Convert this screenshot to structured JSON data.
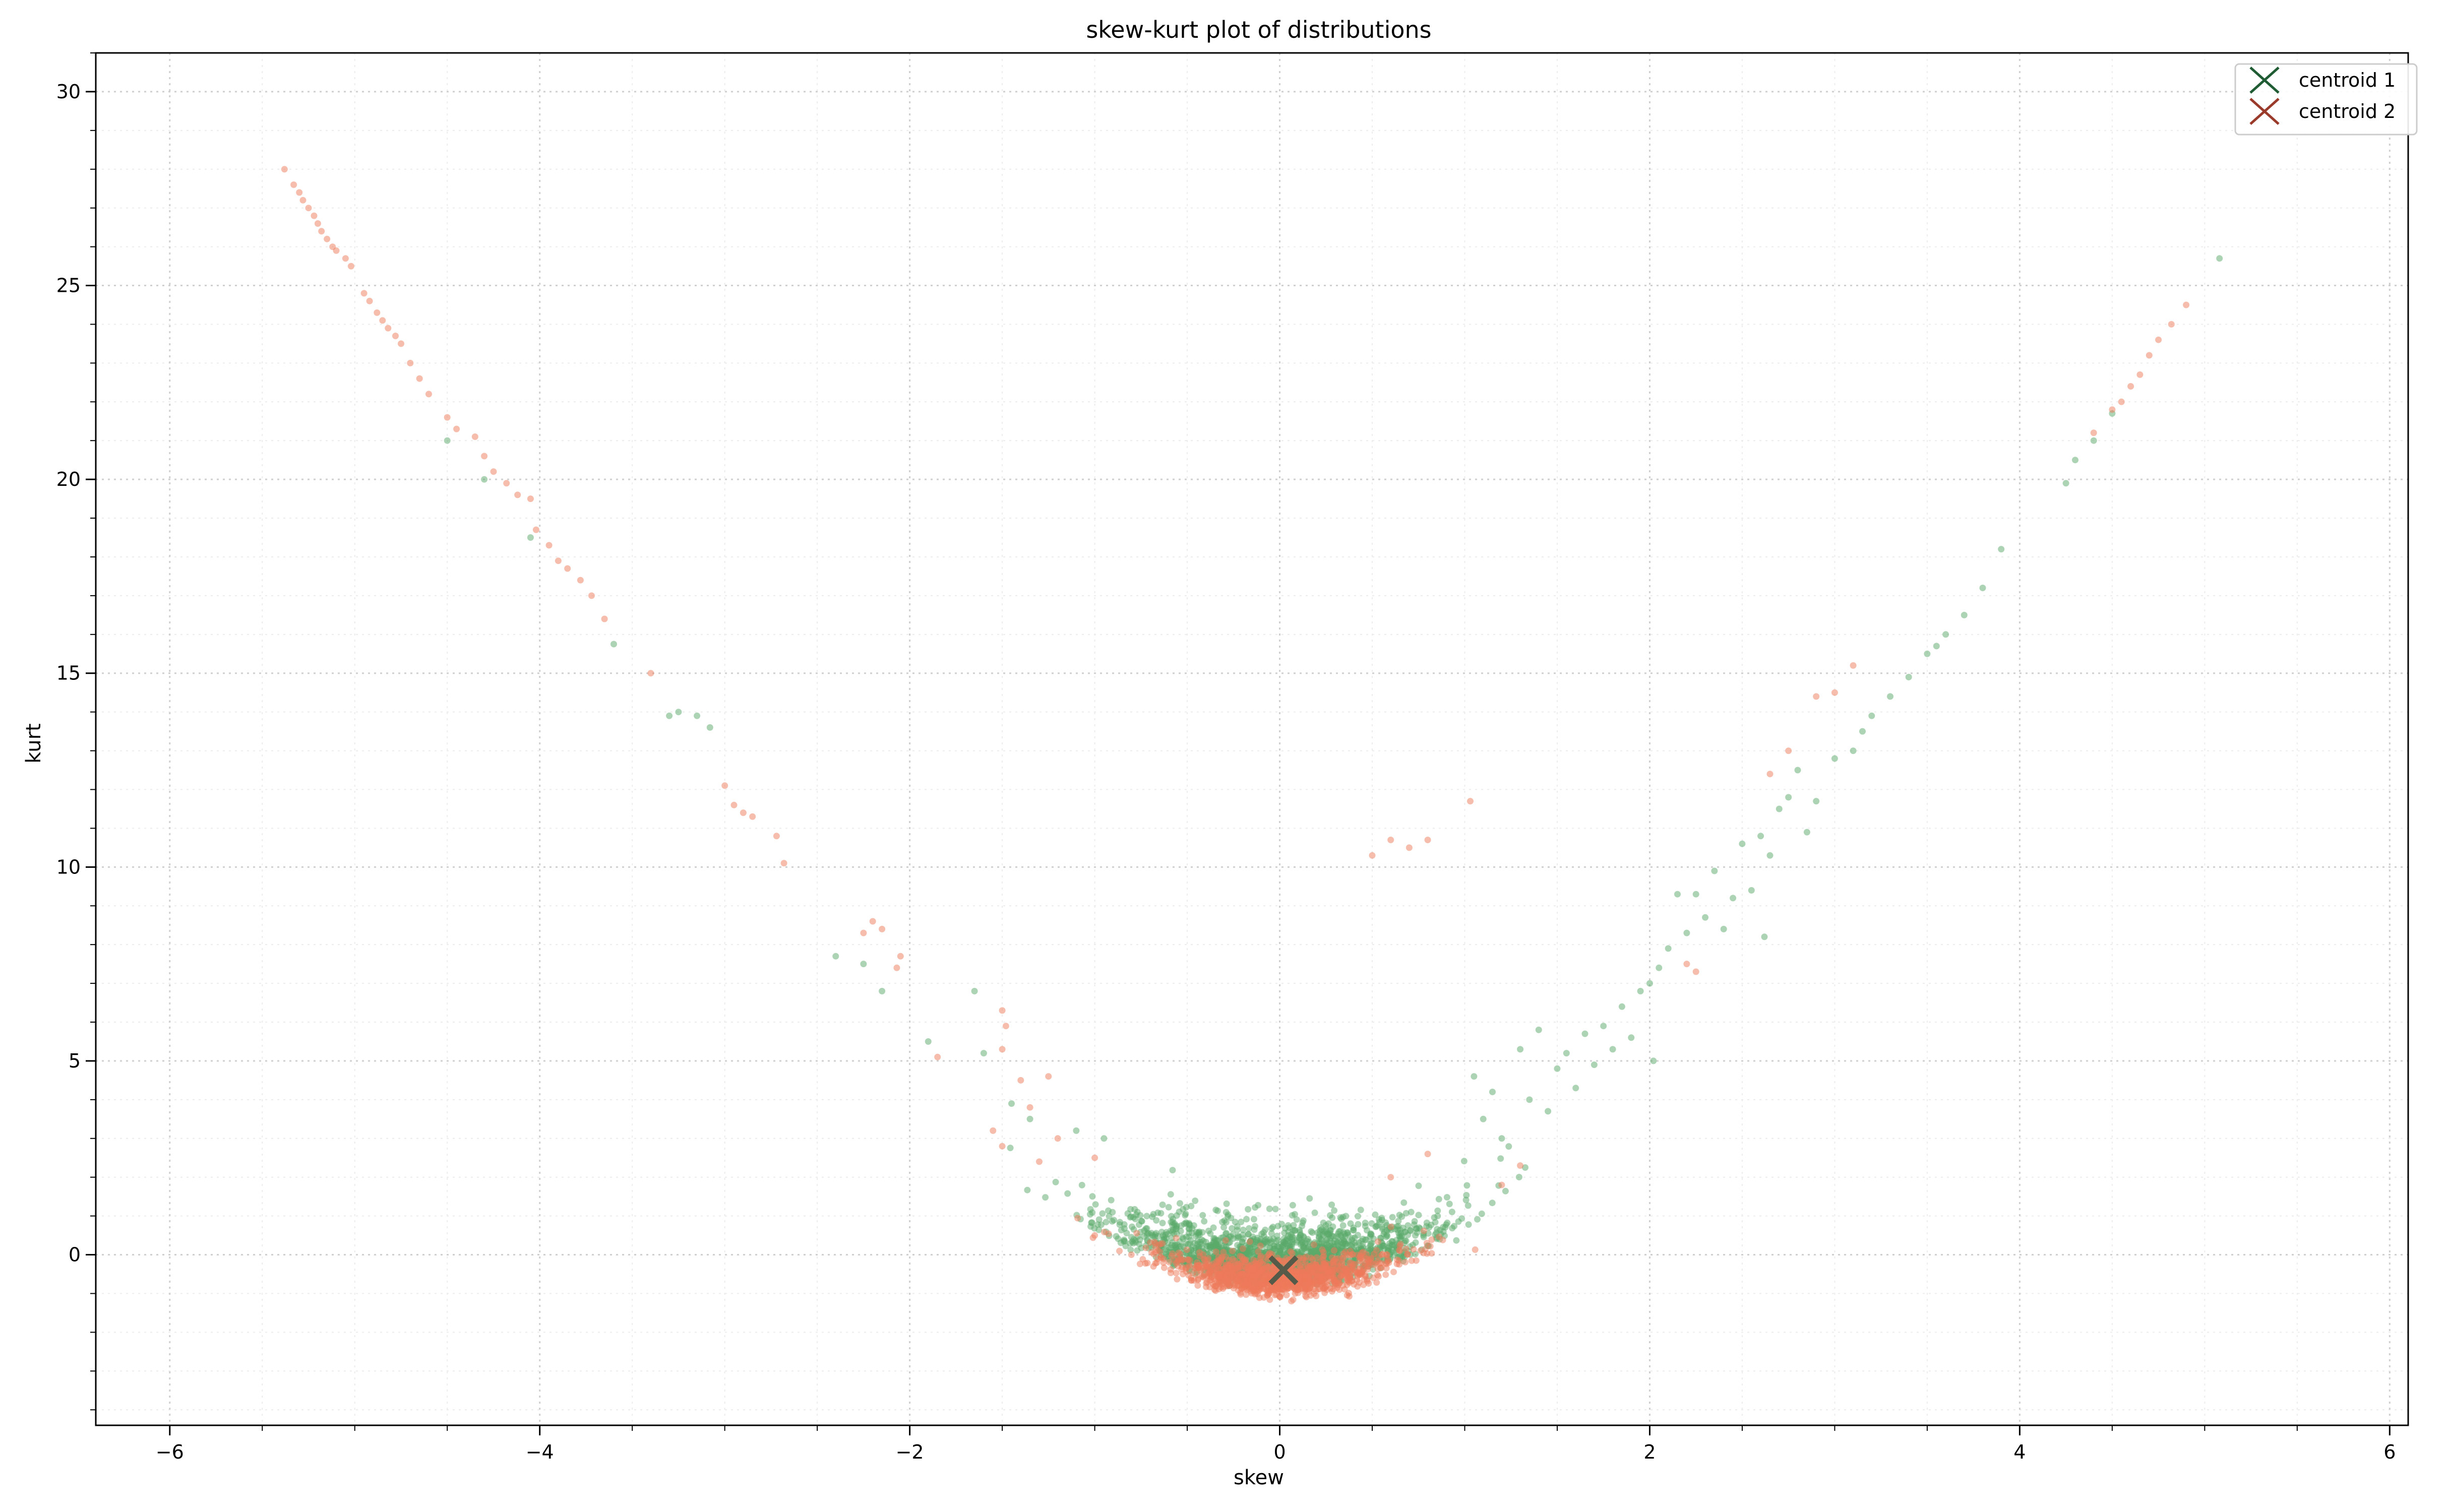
{
  "chart_data": {
    "type": "scatter",
    "title": "skew-kurt plot of distributions",
    "xlabel": "skew",
    "ylabel": "kurt",
    "xlim": [
      -6.4,
      6.1
    ],
    "ylim": [
      -4.4,
      31.0
    ],
    "x_ticks": [
      -6,
      -4,
      -2,
      0,
      2,
      4,
      6
    ],
    "y_ticks": [
      0,
      5,
      10,
      15,
      20,
      25,
      30
    ],
    "x_tick_labels": [
      "−6",
      "−4",
      "−2",
      "0",
      "2",
      "4",
      "6"
    ],
    "y_tick_labels": [
      "0",
      "5",
      "10",
      "15",
      "20",
      "25",
      "30"
    ],
    "grid": true,
    "legend_position": "top-right",
    "colors": {
      "series_1": "#5aaa6a",
      "series_2": "#ee7a5a",
      "centroid_1": "#1f5c33",
      "centroid_2": "#9a3a2a",
      "centroid_overlap": "#555b48"
    },
    "series": [
      {
        "name": "centroid 1",
        "color": "#1f5c33",
        "marker": "x",
        "points": [
          [
            0.02,
            -0.4
          ]
        ]
      },
      {
        "name": "centroid 2",
        "color": "#9a3a2a",
        "marker": "x",
        "points": [
          [
            0.02,
            -0.4
          ]
        ]
      }
    ],
    "scatter_groups": [
      {
        "color": "#5aaa6a",
        "curve_points": [
          [
            -4.5,
            21.0
          ],
          [
            -4.3,
            20.0
          ],
          [
            -4.05,
            18.5
          ],
          [
            -3.6,
            15.75
          ],
          [
            -3.3,
            13.9
          ],
          [
            -3.25,
            14.0
          ],
          [
            -3.15,
            13.9
          ],
          [
            -3.08,
            13.6
          ],
          [
            -2.4,
            7.7
          ],
          [
            -2.25,
            7.5
          ],
          [
            -2.15,
            6.8
          ],
          [
            -1.9,
            5.5
          ],
          [
            -1.65,
            6.8
          ],
          [
            -1.6,
            5.2
          ],
          [
            -1.45,
            3.9
          ],
          [
            -1.35,
            3.5
          ],
          [
            -1.1,
            3.2
          ],
          [
            -0.95,
            3.0
          ],
          [
            1.05,
            4.6
          ],
          [
            1.1,
            3.5
          ],
          [
            1.15,
            4.2
          ],
          [
            1.2,
            3.0
          ],
          [
            1.3,
            5.3
          ],
          [
            1.35,
            4.0
          ],
          [
            1.4,
            5.8
          ],
          [
            1.45,
            3.7
          ],
          [
            1.5,
            4.8
          ],
          [
            1.55,
            5.2
          ],
          [
            1.6,
            4.3
          ],
          [
            1.65,
            5.7
          ],
          [
            1.7,
            4.9
          ],
          [
            1.75,
            5.9
          ],
          [
            1.8,
            5.3
          ],
          [
            1.85,
            6.4
          ],
          [
            1.9,
            5.6
          ],
          [
            1.95,
            6.8
          ],
          [
            2.0,
            7.0
          ],
          [
            2.02,
            5.0
          ],
          [
            2.05,
            7.4
          ],
          [
            2.1,
            7.9
          ],
          [
            2.15,
            9.3
          ],
          [
            2.2,
            8.3
          ],
          [
            2.25,
            9.3
          ],
          [
            2.3,
            8.7
          ],
          [
            2.35,
            9.9
          ],
          [
            2.4,
            8.4
          ],
          [
            2.45,
            9.2
          ],
          [
            2.5,
            10.6
          ],
          [
            2.55,
            9.4
          ],
          [
            2.6,
            10.8
          ],
          [
            2.62,
            8.2
          ],
          [
            2.65,
            10.3
          ],
          [
            2.7,
            11.5
          ],
          [
            2.75,
            11.8
          ],
          [
            2.8,
            12.5
          ],
          [
            2.85,
            10.9
          ],
          [
            2.9,
            11.7
          ],
          [
            3.0,
            12.8
          ],
          [
            3.1,
            13.0
          ],
          [
            3.15,
            13.5
          ],
          [
            3.2,
            13.9
          ],
          [
            3.3,
            14.4
          ],
          [
            3.4,
            14.9
          ],
          [
            3.5,
            15.5
          ],
          [
            3.55,
            15.7
          ],
          [
            3.6,
            16.0
          ],
          [
            3.7,
            16.5
          ],
          [
            3.8,
            17.2
          ],
          [
            3.9,
            18.2
          ],
          [
            4.25,
            19.9
          ],
          [
            4.3,
            20.5
          ],
          [
            4.4,
            21.0
          ],
          [
            4.5,
            21.7
          ],
          [
            5.08,
            25.7
          ]
        ],
        "blob": {
          "cx": 0.0,
          "cy": -0.1,
          "sx": 0.42,
          "sy": 0.65,
          "count": 1700,
          "seed": 11
        }
      },
      {
        "color": "#ee7a5a",
        "curve_points": [
          [
            -5.38,
            28.0
          ],
          [
            -5.33,
            27.6
          ],
          [
            -5.3,
            27.4
          ],
          [
            -5.28,
            27.2
          ],
          [
            -5.25,
            27.0
          ],
          [
            -5.22,
            26.8
          ],
          [
            -5.2,
            26.6
          ],
          [
            -5.18,
            26.4
          ],
          [
            -5.15,
            26.2
          ],
          [
            -5.12,
            26.0
          ],
          [
            -5.1,
            25.9
          ],
          [
            -5.05,
            25.7
          ],
          [
            -5.02,
            25.5
          ],
          [
            -4.95,
            24.8
          ],
          [
            -4.92,
            24.6
          ],
          [
            -4.88,
            24.3
          ],
          [
            -4.85,
            24.1
          ],
          [
            -4.82,
            23.9
          ],
          [
            -4.78,
            23.7
          ],
          [
            -4.75,
            23.5
          ],
          [
            -4.7,
            23.0
          ],
          [
            -4.65,
            22.6
          ],
          [
            -4.6,
            22.2
          ],
          [
            -4.5,
            21.6
          ],
          [
            -4.45,
            21.3
          ],
          [
            -4.35,
            21.1
          ],
          [
            -4.3,
            20.6
          ],
          [
            -4.25,
            20.2
          ],
          [
            -4.18,
            19.9
          ],
          [
            -4.12,
            19.6
          ],
          [
            -4.05,
            19.5
          ],
          [
            -4.02,
            18.7
          ],
          [
            -3.95,
            18.3
          ],
          [
            -3.9,
            17.9
          ],
          [
            -3.85,
            17.7
          ],
          [
            -3.78,
            17.4
          ],
          [
            -3.72,
            17.0
          ],
          [
            -3.65,
            16.4
          ],
          [
            -3.4,
            15.0
          ],
          [
            -3.0,
            12.1
          ],
          [
            -2.95,
            11.6
          ],
          [
            -2.9,
            11.4
          ],
          [
            -2.85,
            11.3
          ],
          [
            -2.72,
            10.8
          ],
          [
            -2.68,
            10.1
          ],
          [
            -2.25,
            8.3
          ],
          [
            -2.2,
            8.6
          ],
          [
            -2.15,
            8.4
          ],
          [
            -2.05,
            7.7
          ],
          [
            -2.07,
            7.4
          ],
          [
            -1.85,
            5.1
          ],
          [
            -1.5,
            6.3
          ],
          [
            -1.48,
            5.9
          ],
          [
            -1.5,
            5.3
          ],
          [
            -1.4,
            4.5
          ],
          [
            -1.35,
            3.8
          ],
          [
            -1.25,
            4.6
          ],
          [
            -1.55,
            3.2
          ],
          [
            -1.5,
            2.8
          ],
          [
            -1.3,
            2.4
          ],
          [
            -1.2,
            3.0
          ],
          [
            -1.0,
            2.5
          ],
          [
            0.5,
            10.3
          ],
          [
            0.6,
            10.7
          ],
          [
            0.7,
            10.5
          ],
          [
            0.8,
            10.7
          ],
          [
            1.03,
            11.7
          ],
          [
            0.6,
            2.0
          ],
          [
            0.8,
            2.6
          ],
          [
            1.2,
            1.8
          ],
          [
            1.3,
            2.3
          ],
          [
            2.2,
            7.5
          ],
          [
            2.25,
            7.3
          ],
          [
            2.65,
            12.4
          ],
          [
            2.75,
            13.0
          ],
          [
            2.9,
            14.4
          ],
          [
            3.0,
            14.5
          ],
          [
            3.1,
            15.2
          ],
          [
            4.4,
            21.2
          ],
          [
            4.5,
            21.8
          ],
          [
            4.55,
            22.0
          ],
          [
            4.6,
            22.4
          ],
          [
            4.65,
            22.7
          ],
          [
            4.7,
            23.2
          ],
          [
            4.75,
            23.6
          ],
          [
            4.82,
            24.0
          ],
          [
            4.9,
            24.5
          ]
        ],
        "blob": {
          "cx": 0.0,
          "cy": -0.4,
          "sx": 0.3,
          "sy": 0.35,
          "count": 1200,
          "seed": 29
        }
      }
    ]
  }
}
